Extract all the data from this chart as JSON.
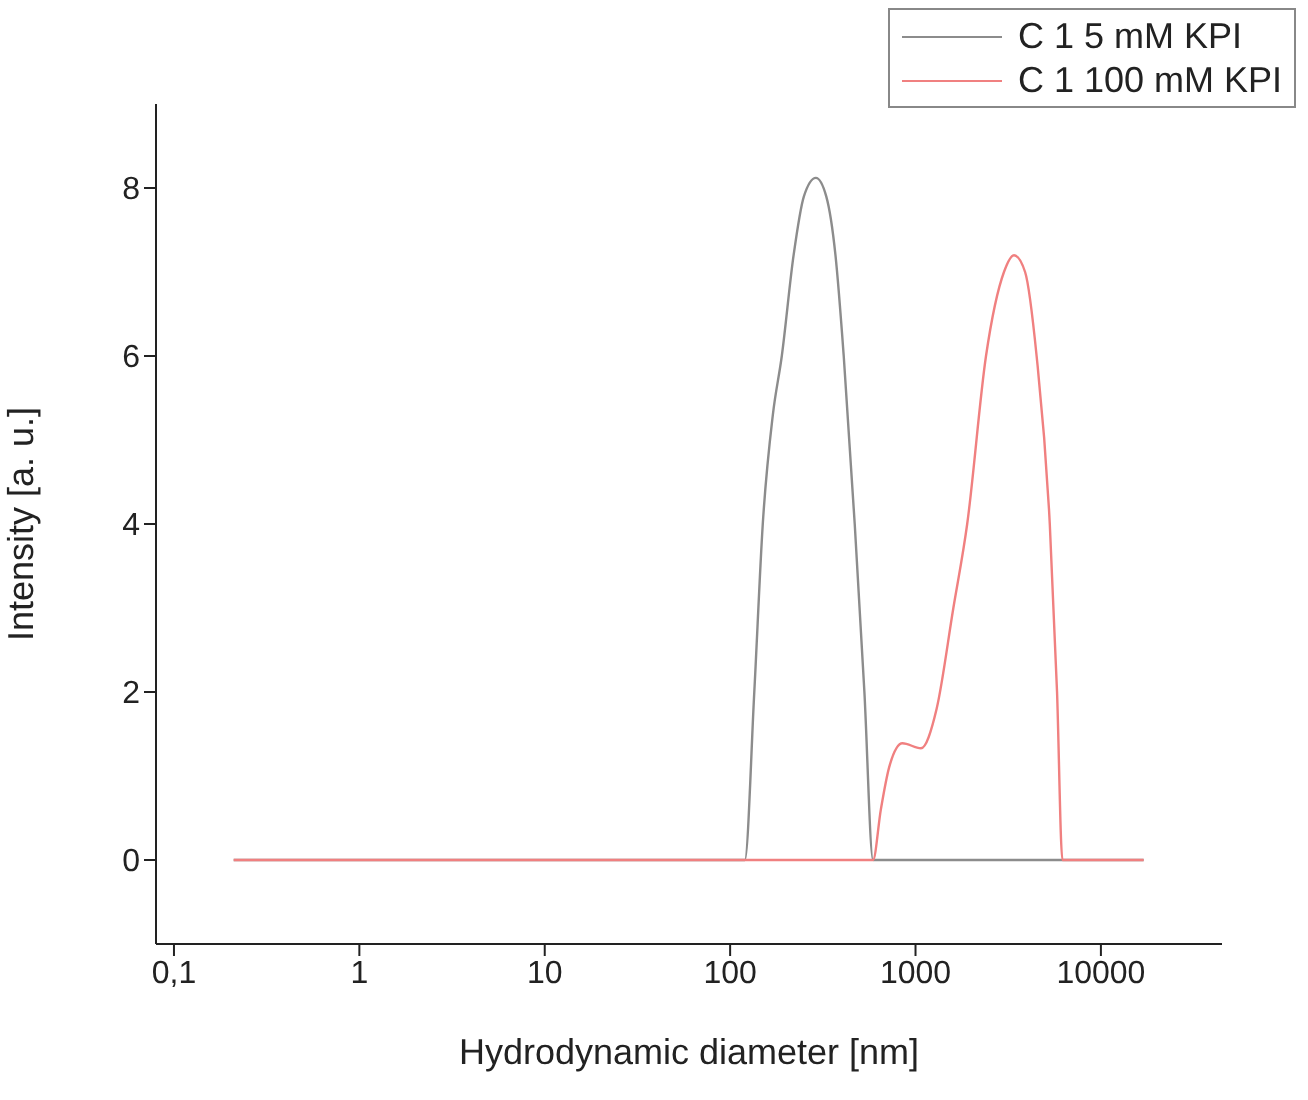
{
  "chart_data": {
    "type": "line",
    "xlabel": "Hydrodynamic diameter [nm]",
    "ylabel": "Intensity [a. u.]",
    "log": "x",
    "xlim": [
      0.08,
      45000
    ],
    "xticks": [
      {
        "value": 0.1,
        "label": "0,1"
      },
      1,
      10,
      100,
      1000,
      10000
    ],
    "ylim": [
      -1,
      9
    ],
    "yticks": [
      0,
      2,
      4,
      6,
      8
    ],
    "grid": false,
    "legend": "top right",
    "marker": "none",
    "line_style": "solid",
    "series": [
      {
        "name": "C 1 5 mM KPI",
        "color": "#8c8c8c",
        "x": [
          0.21,
          120,
          135,
          150,
          170,
          190,
          220,
          250,
          290,
          330,
          370,
          410,
          470,
          530,
          590,
          17000
        ],
        "values": [
          0,
          0,
          2,
          4,
          5.3,
          6,
          7.2,
          7.9,
          8.12,
          7.9,
          7.2,
          6,
          4,
          2,
          0,
          0
        ]
      },
      {
        "name": "C 1 100 mM KPI",
        "color": "#f08080",
        "x": [
          0.21,
          590,
          650,
          720,
          850,
          1070,
          1300,
          1600,
          1900,
          2400,
          3000,
          3400,
          3900,
          4500,
          5300,
          5800,
          6200,
          17000
        ],
        "values": [
          0,
          0,
          0.6,
          1.1,
          1.39,
          1.33,
          1.8,
          3.0,
          4,
          6,
          7.0,
          7.2,
          7.0,
          6.0,
          4,
          2,
          0,
          0
        ]
      }
    ]
  }
}
